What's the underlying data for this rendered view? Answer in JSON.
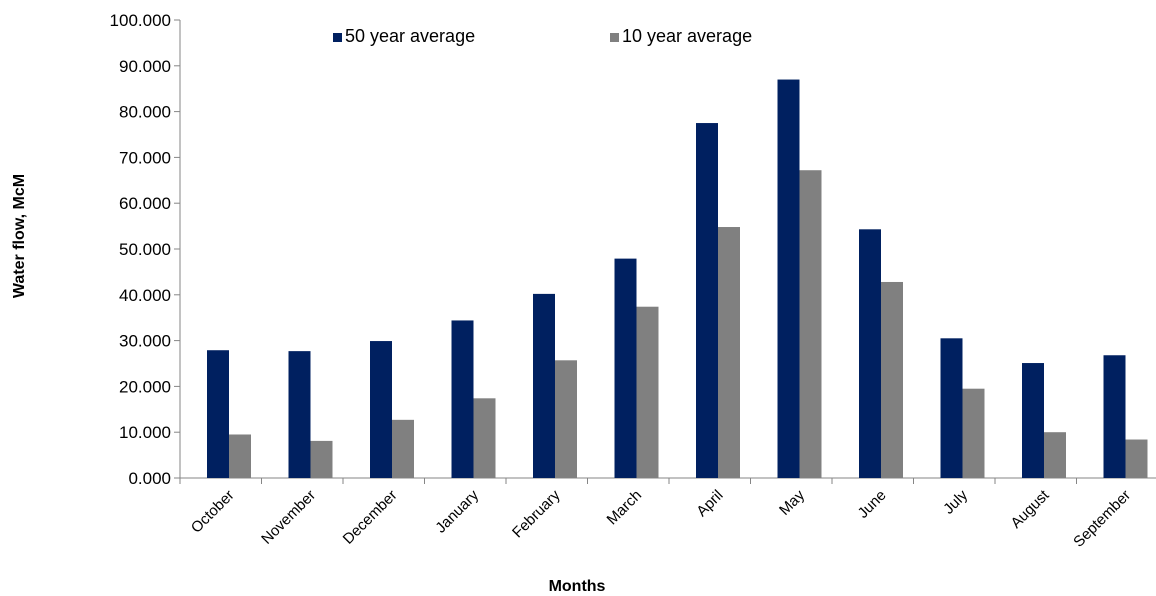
{
  "chart_data": {
    "type": "bar",
    "categories": [
      "October",
      "November",
      "December",
      "January",
      "February",
      "March",
      "April",
      "May",
      "June",
      "July",
      "August",
      "September"
    ],
    "series": [
      {
        "name": "50 year average",
        "color": "#002060",
        "values": [
          27.9,
          27.7,
          29.9,
          34.4,
          40.2,
          47.9,
          77.5,
          87.0,
          54.3,
          30.5,
          25.1,
          26.8
        ]
      },
      {
        "name": "10 year average",
        "color": "#808080",
        "values": [
          9.5,
          8.1,
          12.7,
          17.4,
          25.7,
          37.4,
          54.8,
          67.2,
          42.8,
          19.5,
          10.0,
          8.4
        ]
      }
    ],
    "xlabel": "Months",
    "ylabel": "Water  flow, McM",
    "ylim": [
      0,
      100
    ],
    "ytick_step": 10,
    "ytick_labels": [
      "0.000",
      "10.000",
      "20.000",
      "30.000",
      "40.000",
      "50.000",
      "60.000",
      "70.000",
      "80.000",
      "90.000",
      "100.000"
    ],
    "grid": false,
    "legend_position": "top"
  }
}
